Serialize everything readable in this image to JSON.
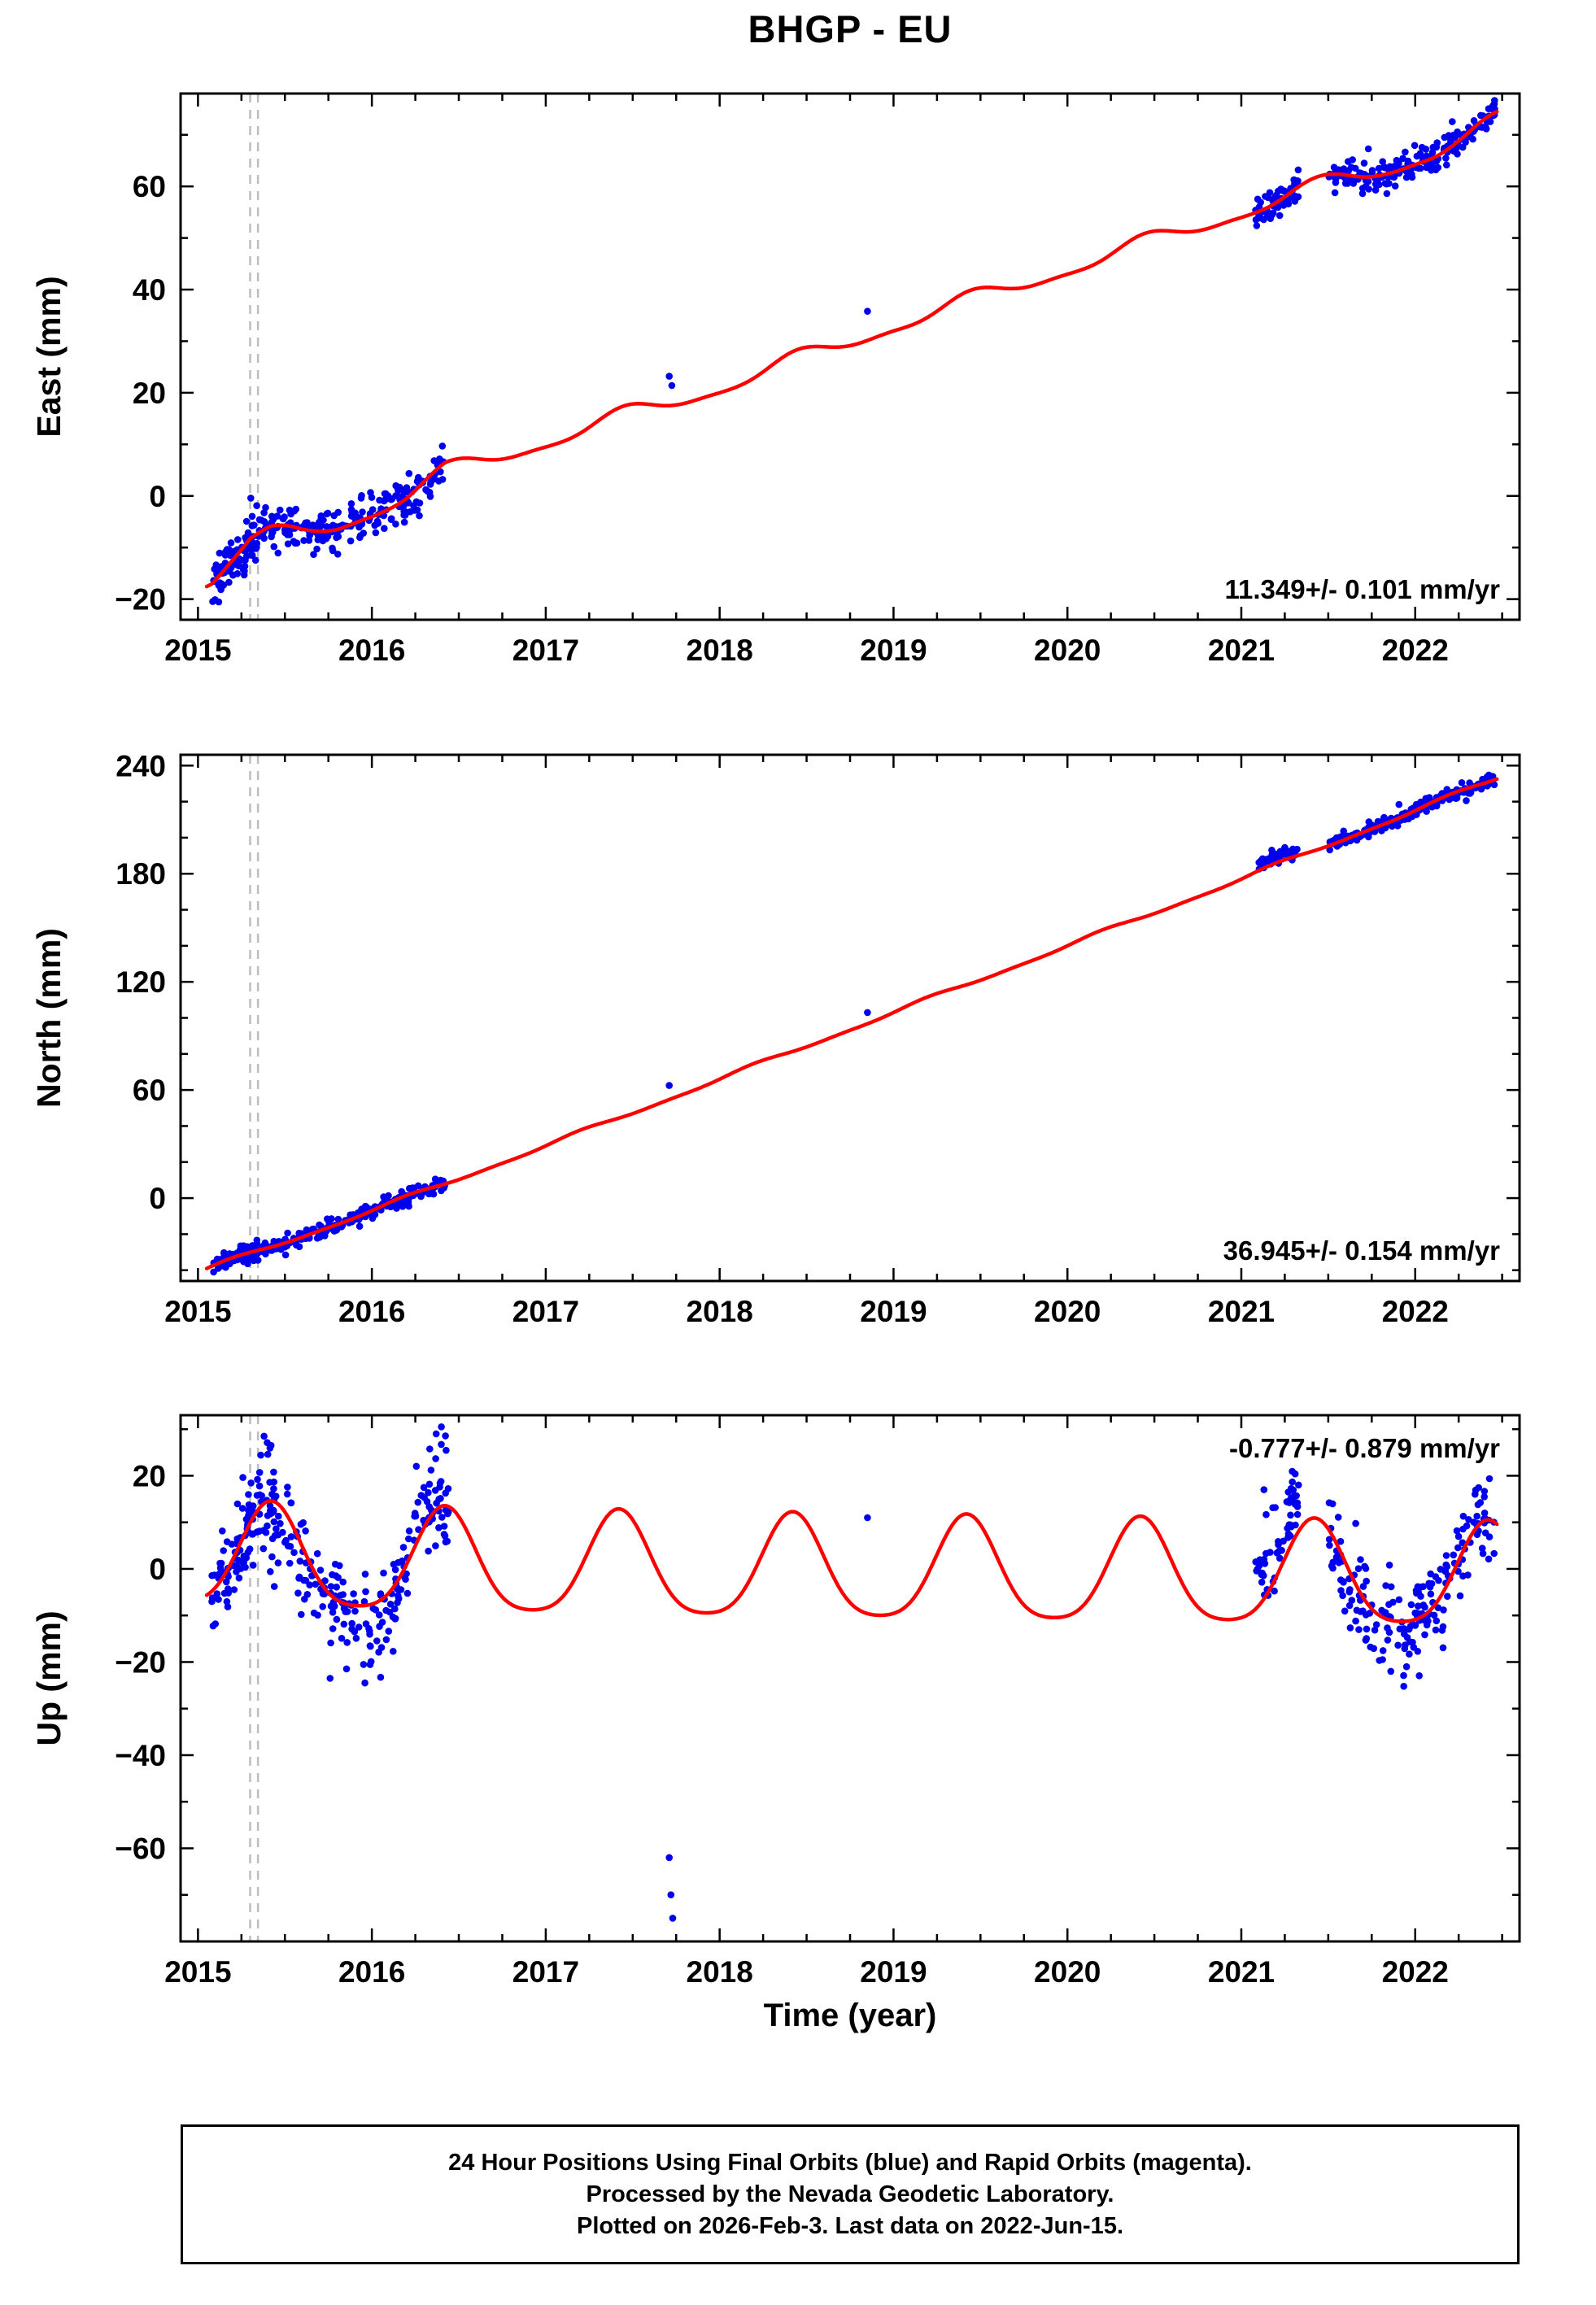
{
  "title": "BHGP - EU",
  "caption": {
    "line1": "24 Hour Positions Using Final Orbits (blue) and Rapid Orbits (magenta).",
    "line2": "Processed by the Nevada Geodetic Laboratory.",
    "line3": "Plotted on 2026-Feb-3. Last data on 2022-Jun-15."
  },
  "chart_data": {
    "type": "scatter",
    "title": "BHGP - EU",
    "colors": {
      "points": "#0000ee",
      "model": "#ff0000",
      "event": "#bdbdbd",
      "axis": "#000000"
    },
    "x_axis": {
      "label": "Time (year)",
      "range": [
        2014.9,
        2022.6
      ],
      "major_ticks": [
        2015,
        2016,
        2017,
        2018,
        2019,
        2020,
        2021,
        2022
      ],
      "minor_step": 0.25
    },
    "event_lines": [
      2015.3,
      2015.345
    ],
    "panels": [
      {
        "name": "east",
        "ylabel": "East (mm)",
        "ylim": [
          -24,
          78
        ],
        "yticks": [
          -20,
          0,
          20,
          40,
          60
        ],
        "y_minor_step": 10,
        "rate_label": "11.349+/- 0.101 mm/yr",
        "rate_pos": "bottom-right",
        "seed": 101,
        "seasonal": {
          "a1": 1.5,
          "a2": 0.5,
          "phase": 0.45
        },
        "model_range": [
          2015.05,
          2022.47
        ],
        "model_anchors": [
          [
            2015.05,
            -16.5
          ],
          [
            2015.08,
            -16
          ],
          [
            2015.18,
            -12.5
          ],
          [
            2015.3,
            -9
          ],
          [
            2015.42,
            -7.8
          ],
          [
            2015.6,
            -7.2
          ],
          [
            2015.8,
            -5.5
          ],
          [
            2016.0,
            -3
          ],
          [
            2016.2,
            0
          ],
          [
            2016.42,
            4.5
          ],
          [
            2016.6,
            6.5
          ],
          [
            2017.0,
            10.5
          ],
          [
            2017.5,
            16
          ],
          [
            2018.0,
            21
          ],
          [
            2018.5,
            27
          ],
          [
            2019.0,
            33
          ],
          [
            2019.5,
            38.5
          ],
          [
            2020.0,
            44
          ],
          [
            2020.5,
            49.5
          ],
          [
            2021.0,
            55
          ],
          [
            2021.3,
            58.5
          ],
          [
            2021.6,
            61.5
          ],
          [
            2021.9,
            64
          ],
          [
            2022.1,
            66.5
          ],
          [
            2022.3,
            69.5
          ],
          [
            2022.47,
            72.5
          ]
        ],
        "scatter_segments": [
          {
            "t0": 2015.08,
            "t1": 2015.44,
            "n": 110,
            "sigma": 2.4,
            "bias": 0
          },
          {
            "t0": 2015.44,
            "t1": 2016.42,
            "n": 190,
            "sigma": 2.2,
            "bias": 0
          },
          {
            "t0": 2021.08,
            "t1": 2021.33,
            "n": 55,
            "sigma": 1.6,
            "bias": 0
          },
          {
            "t0": 2021.5,
            "t1": 2022.46,
            "n": 200,
            "sigma": 1.6,
            "bias": 0
          }
        ],
        "outliers": [
          [
            2017.71,
            23.2
          ],
          [
            2017.725,
            21.4
          ],
          [
            2018.85,
            35.8
          ]
        ]
      },
      {
        "name": "north",
        "ylabel": "North (mm)",
        "ylim": [
          -46,
          246
        ],
        "yticks": [
          0,
          60,
          120,
          180,
          240
        ],
        "y_minor_step": 20,
        "rate_label": "36.945+/- 0.154 mm/yr",
        "rate_pos": "bottom-right",
        "seed": 202,
        "seasonal": {
          "a1": 1.0,
          "a2": 0.4,
          "phase": 0.2
        },
        "model_range": [
          2015.05,
          2022.47
        ],
        "model_anchors": [
          [
            2015.05,
            -39.5
          ],
          [
            2015.3,
            -31
          ],
          [
            2015.6,
            -21
          ],
          [
            2016.0,
            -7
          ],
          [
            2016.42,
            8
          ],
          [
            2017.0,
            29
          ],
          [
            2018.0,
            66
          ],
          [
            2019.0,
            103
          ],
          [
            2020.0,
            140
          ],
          [
            2021.0,
            177
          ],
          [
            2021.5,
            196
          ],
          [
            2022.0,
            215
          ],
          [
            2022.47,
            233
          ]
        ],
        "scatter_segments": [
          {
            "t0": 2015.08,
            "t1": 2015.44,
            "n": 110,
            "sigma": 2.4,
            "bias": 0
          },
          {
            "t0": 2015.44,
            "t1": 2016.42,
            "n": 190,
            "sigma": 2.2,
            "bias": 0
          },
          {
            "t0": 2021.08,
            "t1": 2021.33,
            "n": 55,
            "sigma": 1.8,
            "bias": 3
          },
          {
            "t0": 2021.5,
            "t1": 2022.46,
            "n": 200,
            "sigma": 1.8,
            "bias": 0
          }
        ],
        "outliers": [
          [
            2017.71,
            62.5
          ],
          [
            2018.85,
            103
          ]
        ]
      },
      {
        "name": "up",
        "ylabel": "Up (mm)",
        "ylim": [
          -80,
          33
        ],
        "yticks": [
          -60,
          -40,
          -20,
          0,
          20
        ],
        "y_minor_step": 10,
        "rate_label": "-0.777+/- 0.879 mm/yr",
        "rate_pos": "top-right",
        "seed": 303,
        "seasonal": {
          "a1": 11,
          "a2": 2,
          "phase": 0.42
        },
        "model_range": [
          2015.05,
          2022.47
        ],
        "model_anchors": [
          [
            2015.05,
            2
          ],
          [
            2015.5,
            1.5
          ],
          [
            2016.5,
            0.5
          ],
          [
            2018.0,
            -0.5
          ],
          [
            2020.0,
            -1.5
          ],
          [
            2022.47,
            -2.5
          ]
        ],
        "scatter_segments": [
          {
            "t0": 2015.08,
            "t1": 2015.44,
            "n": 110,
            "sigma": 5.5,
            "bias": 0
          },
          {
            "t0": 2015.44,
            "t1": 2015.85,
            "n": 80,
            "sigma": 5.5,
            "bias": -2
          },
          {
            "t0": 2015.85,
            "t1": 2016.2,
            "n": 70,
            "sigma": 5,
            "bias": -4
          },
          {
            "t0": 2016.2,
            "t1": 2016.44,
            "n": 55,
            "sigma": 6,
            "bias": 4
          },
          {
            "t0": 2021.08,
            "t1": 2021.33,
            "n": 55,
            "sigma": 4.5,
            "bias": 8
          },
          {
            "t0": 2021.5,
            "t1": 2022.0,
            "n": 90,
            "sigma": 5,
            "bias": -2
          },
          {
            "t0": 2022.0,
            "t1": 2022.46,
            "n": 95,
            "sigma": 5,
            "bias": 0
          }
        ],
        "outliers": [
          [
            2015.38,
            28.5
          ],
          [
            2015.42,
            26.5
          ],
          [
            2016.37,
            29
          ],
          [
            2016.4,
            30.5
          ],
          [
            2015.76,
            -23.5
          ],
          [
            2015.96,
            -24.5
          ],
          [
            2021.13,
            17
          ],
          [
            2021.27,
            16.5
          ],
          [
            2021.86,
            -22
          ],
          [
            2021.95,
            -21
          ],
          [
            2017.71,
            -62
          ],
          [
            2017.72,
            -70
          ],
          [
            2017.73,
            -75
          ],
          [
            2018.85,
            11
          ]
        ]
      }
    ]
  }
}
